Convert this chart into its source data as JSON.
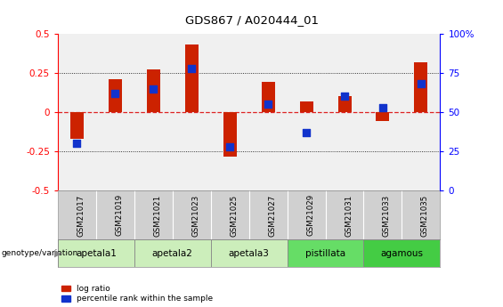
{
  "title": "GDS867 / A020444_01",
  "samples": [
    "GSM21017",
    "GSM21019",
    "GSM21021",
    "GSM21023",
    "GSM21025",
    "GSM21027",
    "GSM21029",
    "GSM21031",
    "GSM21033",
    "GSM21035"
  ],
  "log_ratio": [
    -0.17,
    0.21,
    0.27,
    0.43,
    -0.285,
    0.19,
    0.07,
    0.1,
    -0.055,
    0.32
  ],
  "percentile": [
    30,
    62,
    65,
    78,
    28,
    55,
    37,
    60,
    53,
    68
  ],
  "groups": [
    {
      "name": "apetala1",
      "indices": [
        0,
        1
      ],
      "color": "#cceebb"
    },
    {
      "name": "apetala2",
      "indices": [
        2,
        3
      ],
      "color": "#cceebb"
    },
    {
      "name": "apetala3",
      "indices": [
        4,
        5
      ],
      "color": "#cceebb"
    },
    {
      "name": "pistillata",
      "indices": [
        6,
        7
      ],
      "color": "#66dd66"
    },
    {
      "name": "agamous",
      "indices": [
        8,
        9
      ],
      "color": "#44cc44"
    }
  ],
  "ylim_left": [
    -0.5,
    0.5
  ],
  "ylim_right": [
    0,
    100
  ],
  "yticks_left": [
    -0.5,
    -0.25,
    0.0,
    0.25,
    0.5
  ],
  "yticks_right": [
    0,
    25,
    50,
    75,
    100
  ],
  "bar_color": "#cc2200",
  "dot_color": "#1133cc",
  "plot_bg_color": "#f0f0f0",
  "zero_line_color": "#dd2222",
  "bar_width": 0.35,
  "dot_size": 28
}
